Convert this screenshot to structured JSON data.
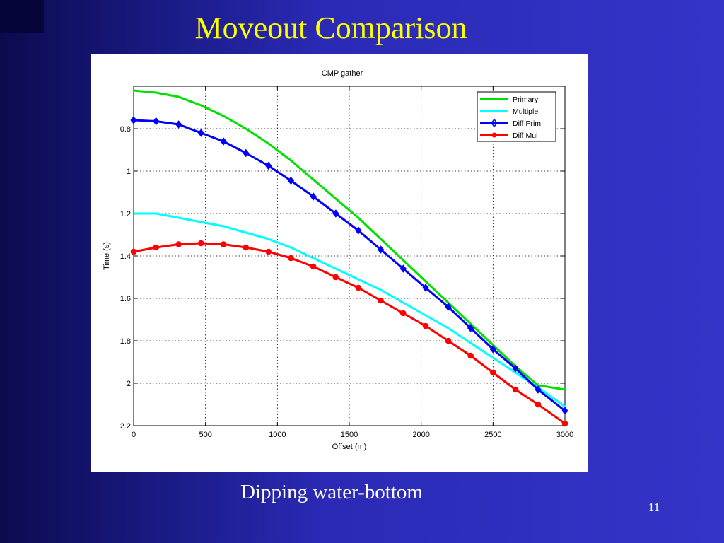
{
  "slide": {
    "title": "Moveout Comparison",
    "caption": "Dipping water-bottom",
    "page_number": "11"
  },
  "colors": {
    "title": "#ffff00",
    "background": "#3434c8"
  },
  "chart_data": {
    "type": "line",
    "title": "CMP gather",
    "xlabel": "Offset (m)",
    "ylabel": "Time (s)",
    "xlim": [
      0,
      3000
    ],
    "ylim": [
      0.6,
      2.2
    ],
    "y_reversed": true,
    "grid": true,
    "legend_position": "top-right",
    "x_ticks": [
      "0",
      "500",
      "1000",
      "1500",
      "2000",
      "2500",
      "3000"
    ],
    "y_ticks": [
      "0.8",
      "1",
      "1.2",
      "1.4",
      "1.6",
      "1.8",
      "2",
      "2.2"
    ],
    "x_tick_values": [
      0,
      500,
      1000,
      1500,
      2000,
      2500,
      3000
    ],
    "y_tick_values": [
      0.8,
      1.0,
      1.2,
      1.4,
      1.6,
      1.8,
      2.0,
      2.2
    ],
    "x": [
      0,
      156,
      313,
      469,
      625,
      781,
      938,
      1094,
      1250,
      1406,
      1563,
      1719,
      1875,
      2031,
      2188,
      2344,
      2500,
      2656,
      2813,
      3000
    ],
    "series": [
      {
        "name": "Primary",
        "color": "#00e000",
        "marker": "none",
        "values": [
          0.62,
          0.63,
          0.65,
          0.69,
          0.74,
          0.8,
          0.87,
          0.95,
          1.04,
          1.13,
          1.22,
          1.32,
          1.42,
          1.52,
          1.62,
          1.72,
          1.82,
          1.92,
          2.01,
          2.03
        ]
      },
      {
        "name": "Multiple",
        "color": "#00ffff",
        "marker": "none",
        "values": [
          1.2,
          1.2,
          1.22,
          1.24,
          1.26,
          1.29,
          1.32,
          1.36,
          1.41,
          1.46,
          1.51,
          1.56,
          1.62,
          1.68,
          1.74,
          1.81,
          1.88,
          1.95,
          2.02,
          2.11
        ]
      },
      {
        "name": "Diff Prim",
        "color": "#0000ff",
        "marker": "diamond",
        "values": [
          0.76,
          0.765,
          0.78,
          0.82,
          0.86,
          0.915,
          0.975,
          1.045,
          1.12,
          1.2,
          1.28,
          1.37,
          1.46,
          1.55,
          1.64,
          1.74,
          1.84,
          1.93,
          2.03,
          2.13
        ]
      },
      {
        "name": "Diff Mul",
        "color": "#ff0000",
        "marker": "circle",
        "values": [
          1.38,
          1.36,
          1.345,
          1.34,
          1.345,
          1.36,
          1.38,
          1.41,
          1.45,
          1.5,
          1.55,
          1.61,
          1.67,
          1.73,
          1.8,
          1.87,
          1.95,
          2.03,
          2.1,
          2.19
        ]
      }
    ]
  }
}
